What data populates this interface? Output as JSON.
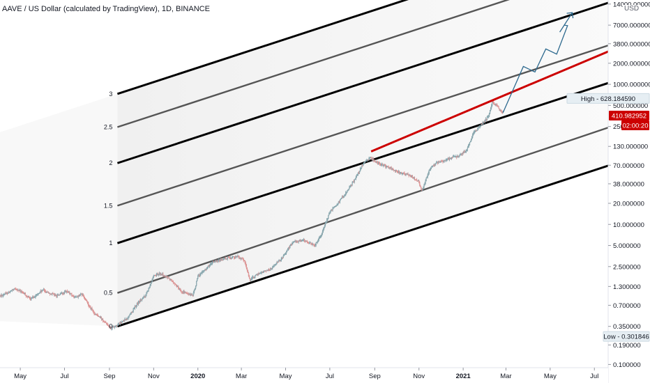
{
  "chart_data": {
    "type": "line",
    "title": "AAVE / US Dollar (calculated by TradingView), 1D, BINANCE",
    "y_scale": "log",
    "currency": "USD",
    "x_range": [
      "2019-04-03",
      "2021-07-20"
    ],
    "ylim": [
      0.09,
      16000
    ],
    "x_ticks": [
      {
        "label": "May",
        "date": "2019-05-01",
        "bold": false
      },
      {
        "label": "Jul",
        "date": "2019-07-01",
        "bold": false
      },
      {
        "label": "Sep",
        "date": "2019-09-01",
        "bold": false
      },
      {
        "label": "Nov",
        "date": "2019-11-01",
        "bold": false
      },
      {
        "label": "2020",
        "date": "2020-01-01",
        "bold": true
      },
      {
        "label": "Mar",
        "date": "2020-03-01",
        "bold": false
      },
      {
        "label": "May",
        "date": "2020-05-01",
        "bold": false
      },
      {
        "label": "Jul",
        "date": "2020-07-01",
        "bold": false
      },
      {
        "label": "Sep",
        "date": "2020-09-01",
        "bold": false
      },
      {
        "label": "Nov",
        "date": "2020-11-01",
        "bold": false
      },
      {
        "label": "2021",
        "date": "2021-01-01",
        "bold": true
      },
      {
        "label": "Mar",
        "date": "2021-03-01",
        "bold": false
      },
      {
        "label": "May",
        "date": "2021-05-01",
        "bold": false
      },
      {
        "label": "Jul",
        "date": "2021-07-01",
        "bold": false
      }
    ],
    "y_ticks": [
      {
        "label": "14000.000000",
        "value": 14000
      },
      {
        "label": "7000.000000",
        "value": 7000
      },
      {
        "label": "3800.000000",
        "value": 3800
      },
      {
        "label": "2000.000000",
        "value": 2000
      },
      {
        "label": "1000.000000",
        "value": 1000
      },
      {
        "label": "500.000000",
        "value": 500
      },
      {
        "label": "250.000000",
        "value": 250
      },
      {
        "label": "130.000000",
        "value": 130
      },
      {
        "label": "70.000000",
        "value": 70
      },
      {
        "label": "38.000000",
        "value": 38
      },
      {
        "label": "20.000000",
        "value": 20
      },
      {
        "label": "10.000000",
        "value": 10
      },
      {
        "label": "5.000000",
        "value": 5
      },
      {
        "label": "2.500000",
        "value": 2.5
      },
      {
        "label": "1.300000",
        "value": 1.3
      },
      {
        "label": "0.700000",
        "value": 0.7
      },
      {
        "label": "0.350000",
        "value": 0.35
      },
      {
        "label": "0.190000",
        "value": 0.19
      },
      {
        "label": "0.100000",
        "value": 0.1
      }
    ],
    "price_path": [
      [
        "2019-04-03",
        0.95
      ],
      [
        "2019-04-25",
        1.2
      ],
      [
        "2019-05-05",
        1.05
      ],
      [
        "2019-05-15",
        0.85
      ],
      [
        "2019-06-01",
        1.15
      ],
      [
        "2019-06-20",
        0.95
      ],
      [
        "2019-07-05",
        1.1
      ],
      [
        "2019-07-15",
        0.9
      ],
      [
        "2019-07-25",
        1.0
      ],
      [
        "2019-08-10",
        0.55
      ],
      [
        "2019-08-25",
        0.42
      ],
      [
        "2019-09-03",
        0.33
      ],
      [
        "2019-09-10",
        0.36
      ],
      [
        "2019-09-25",
        0.45
      ],
      [
        "2019-10-10",
        0.75
      ],
      [
        "2019-10-20",
        0.95
      ],
      [
        "2019-11-01",
        1.8
      ],
      [
        "2019-11-10",
        2.0
      ],
      [
        "2019-11-25",
        1.6
      ],
      [
        "2019-12-10",
        1.1
      ],
      [
        "2019-12-25",
        0.95
      ],
      [
        "2020-01-01",
        1.8
      ],
      [
        "2020-01-20",
        2.8
      ],
      [
        "2020-02-10",
        3.3
      ],
      [
        "2020-02-25",
        3.5
      ],
      [
        "2020-03-05",
        3.0
      ],
      [
        "2020-03-13",
        1.6
      ],
      [
        "2020-03-25",
        2.0
      ],
      [
        "2020-04-10",
        2.3
      ],
      [
        "2020-04-25",
        3.2
      ],
      [
        "2020-05-10",
        5.5
      ],
      [
        "2020-05-25",
        6.0
      ],
      [
        "2020-06-10",
        5.0
      ],
      [
        "2020-06-20",
        7.5
      ],
      [
        "2020-07-01",
        15.0
      ],
      [
        "2020-07-15",
        22.0
      ],
      [
        "2020-07-25",
        30.0
      ],
      [
        "2020-08-05",
        45.0
      ],
      [
        "2020-08-15",
        70.0
      ],
      [
        "2020-08-25",
        90.0
      ],
      [
        "2020-09-05",
        75.0
      ],
      [
        "2020-09-20",
        65.0
      ],
      [
        "2020-10-05",
        55.0
      ],
      [
        "2020-10-20",
        50.0
      ],
      [
        "2020-11-01",
        40.0
      ],
      [
        "2020-11-05",
        30.0
      ],
      [
        "2020-11-15",
        60.0
      ],
      [
        "2020-11-25",
        75.0
      ],
      [
        "2020-12-10",
        85.0
      ],
      [
        "2020-12-25",
        95.0
      ],
      [
        "2021-01-05",
        110.0
      ],
      [
        "2021-01-15",
        200.0
      ],
      [
        "2021-01-25",
        260.0
      ],
      [
        "2021-02-05",
        350.0
      ],
      [
        "2021-02-10",
        560.0
      ],
      [
        "2021-02-14",
        520.0
      ],
      [
        "2021-02-18",
        470.0
      ],
      [
        "2021-02-23",
        395.0
      ],
      [
        "2021-02-25",
        410.98
      ]
    ],
    "channel_lines": [
      {
        "label": "0",
        "start": [
          "2019-09-12",
          0.35
        ],
        "end": [
          "2021-07-22",
          70.0
        ],
        "color": "#000000"
      },
      {
        "label": "0.5",
        "start": [
          "2019-09-12",
          1.05
        ],
        "end": [
          "2021-07-22",
          245.0
        ],
        "color": "#555555"
      },
      {
        "label": "1",
        "start": [
          "2019-09-12",
          5.4
        ],
        "end": [
          "2021-07-22",
          1060.0
        ],
        "color": "#000000"
      },
      {
        "label": "1.5",
        "start": [
          "2019-09-12",
          18.5
        ],
        "end": [
          "2021-07-22",
          3650.0
        ],
        "color": "#555555"
      },
      {
        "label": "2",
        "start": [
          "2019-09-12",
          75.0
        ],
        "end": [
          "2021-07-22",
          14800.0
        ],
        "color": "#000000"
      },
      {
        "label": "2.5",
        "start": [
          "2019-09-12",
          245.0
        ],
        "end": [
          "2021-07-22",
          48000.0
        ],
        "color": "#555555"
      },
      {
        "label": "3",
        "start": [
          "2019-09-12",
          730.0
        ],
        "end": [
          "2021-07-22",
          143000.0
        ],
        "color": "#000000"
      }
    ],
    "resistance_line": {
      "start": [
        "2020-08-27",
        110.0
      ],
      "end": [
        "2021-07-22",
        3000.0
      ],
      "color": "#cc0000"
    },
    "projection": [
      [
        "2021-02-25",
        395.0
      ],
      [
        "2021-03-25",
        1800.0
      ],
      [
        "2021-04-10",
        1500.0
      ],
      [
        "2021-04-25",
        3200.0
      ],
      [
        "2021-05-10",
        2700.0
      ],
      [
        "2021-05-25",
        6900.0
      ],
      [
        "2021-05-20",
        7000.0
      ]
    ],
    "high": 628.18459,
    "low": 0.301846,
    "last_price": 410.982952
  },
  "labels": {
    "title": "AAVE / US Dollar (calculated by TradingView), 1D, BINANCE",
    "currency": "USD",
    "high_label": "High - 628.184590",
    "low_label": "Low - 0.301846",
    "last_price_label": "410.982952",
    "countdown": "02:00:20"
  },
  "colors": {
    "up": "#26a69a",
    "down": "#ef5350",
    "candle": "#8a9aa5",
    "resistance": "#cc0000",
    "projection": "#2e6a8f",
    "price_tag": "#cc0000",
    "axis_text": "#131722"
  }
}
